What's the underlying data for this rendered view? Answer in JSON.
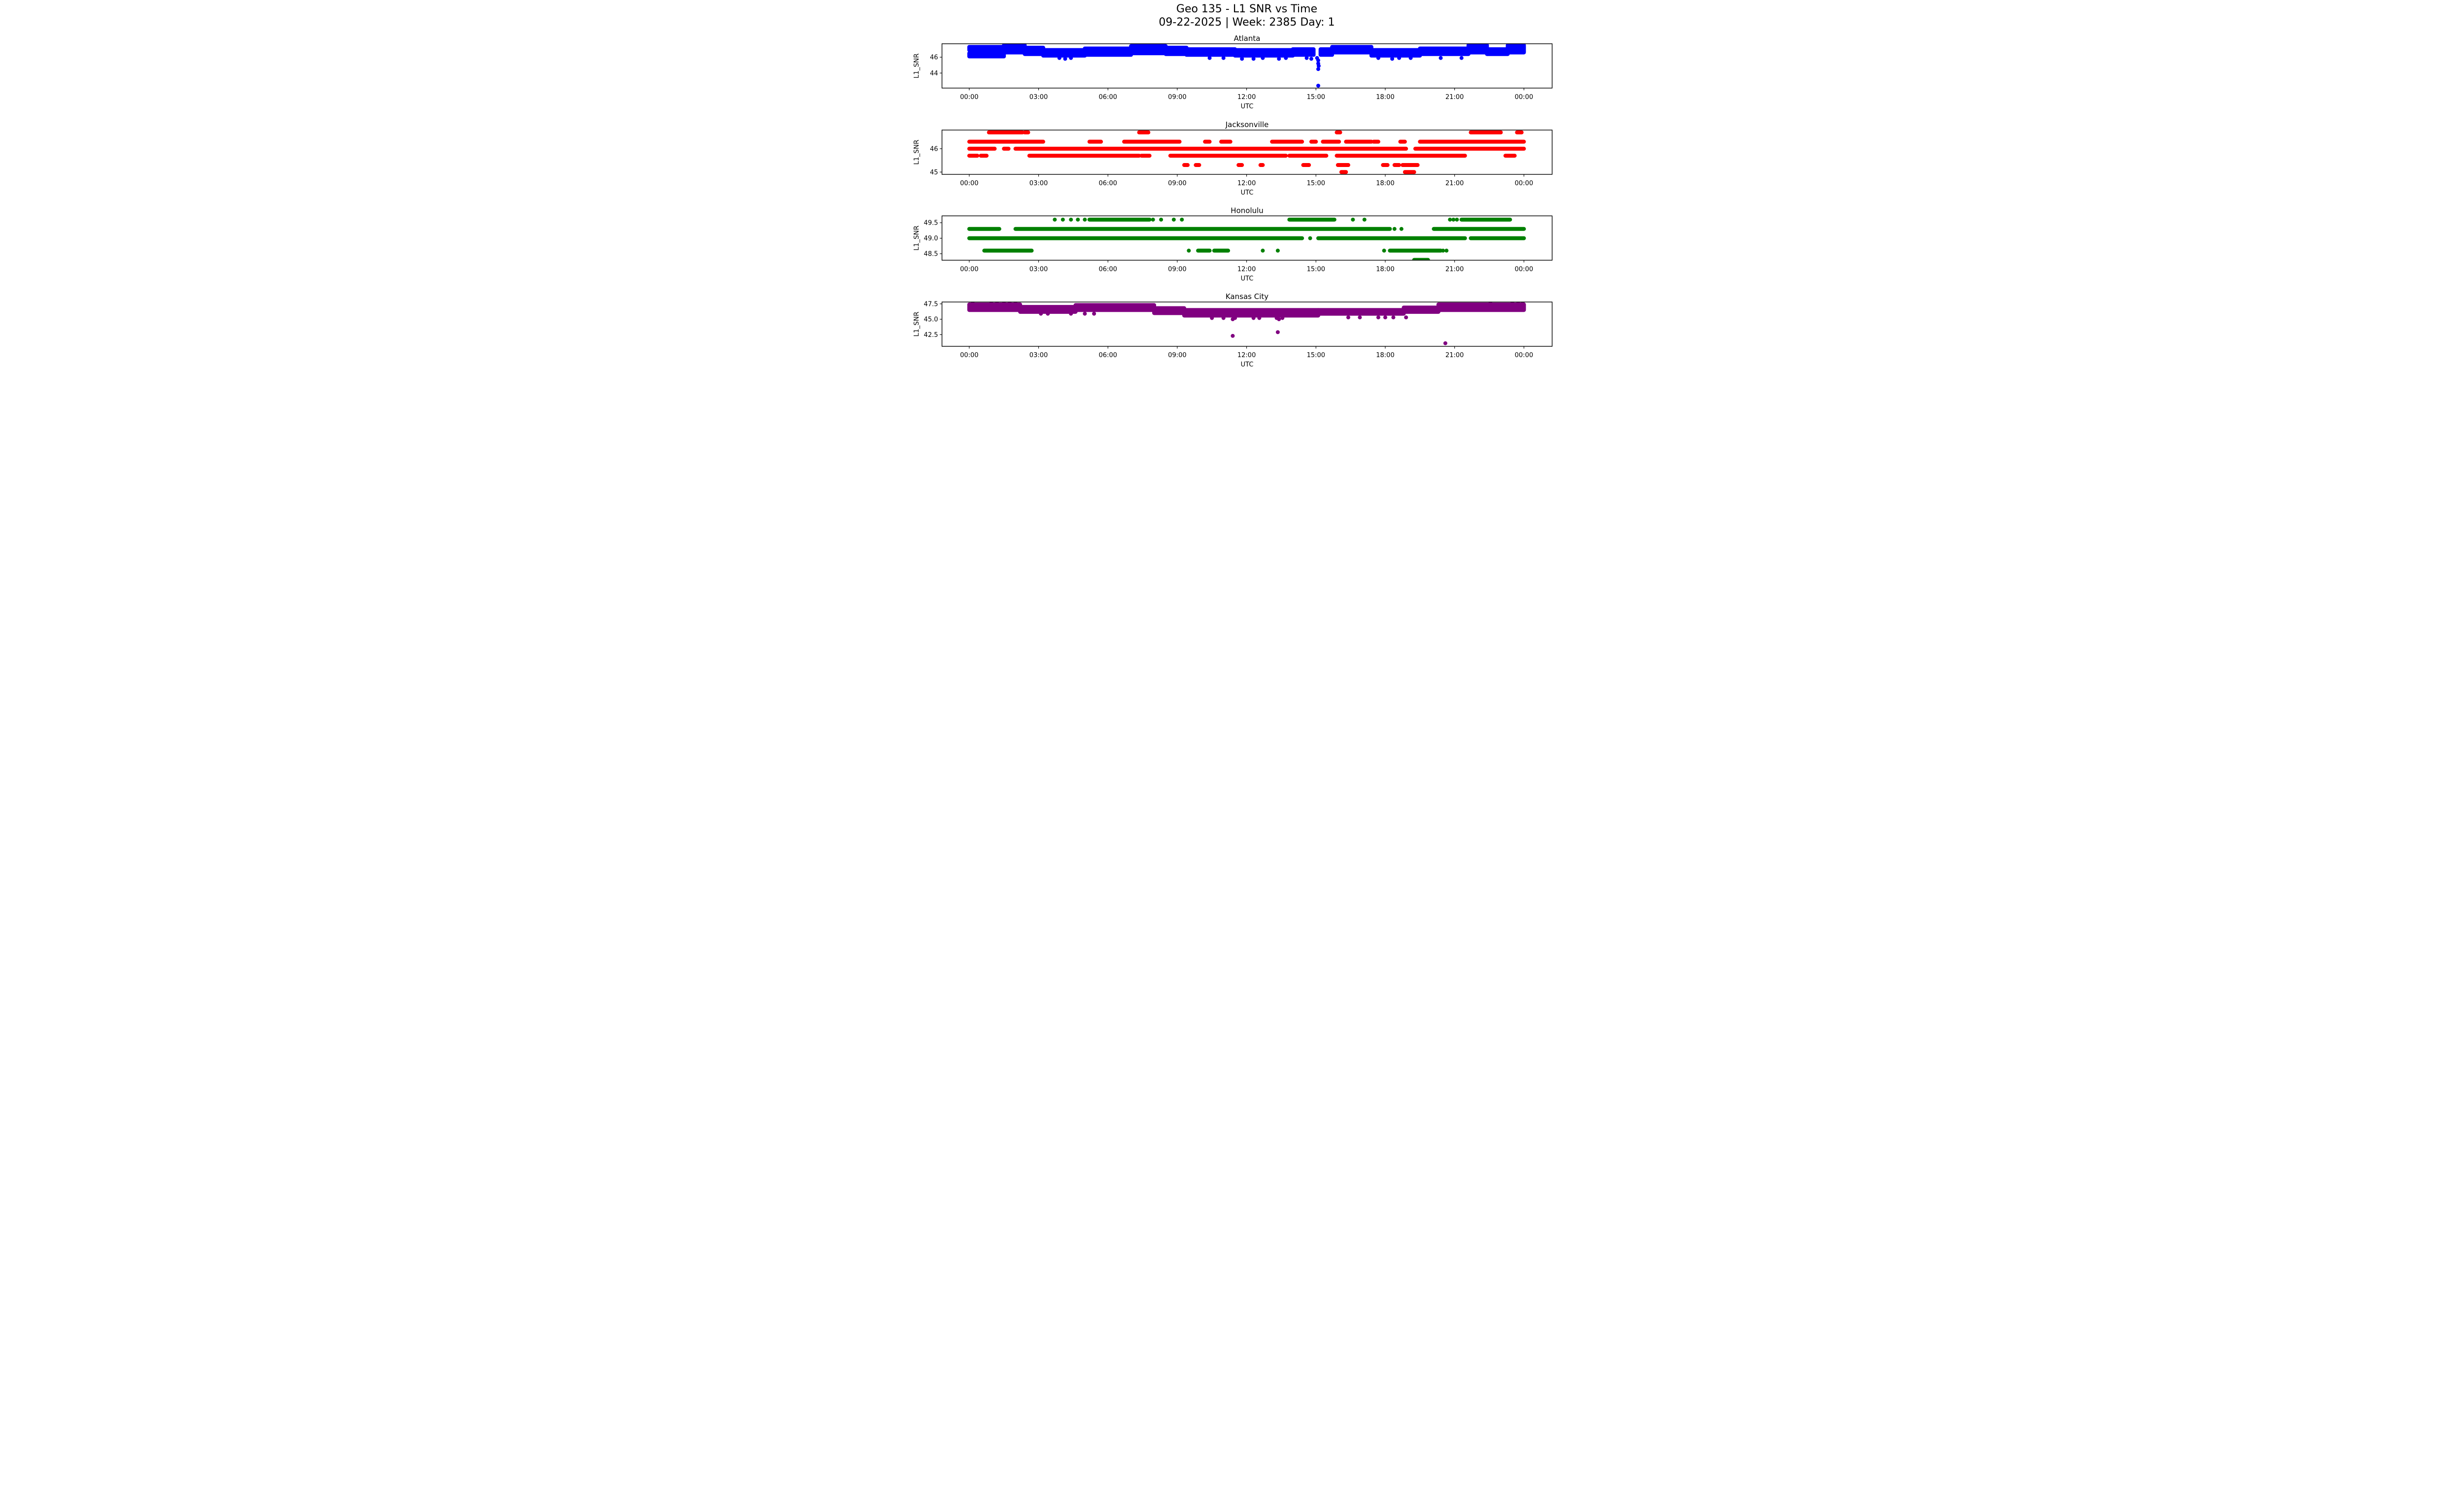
{
  "figure": {
    "title": "Geo 135 - L1 SNR vs Time",
    "subtitle": "09-22-2025 | Week: 2385 Day: 1",
    "background_color": "#ffffff",
    "text_color": "#000000"
  },
  "chart_data": [
    {
      "type": "scatter",
      "title": "Atlanta",
      "color": "#0000ff",
      "xlabel": "UTC",
      "ylabel": "L1_SNR",
      "x_tick_labels": [
        "00:00",
        "03:00",
        "06:00",
        "09:00",
        "12:00",
        "15:00",
        "18:00",
        "21:00",
        "00:00"
      ],
      "x_tick_hours": [
        0,
        3,
        6,
        9,
        12,
        15,
        18,
        21,
        24
      ],
      "xlim_hours": [
        -1.18,
        25.22
      ],
      "ylim": [
        42.1,
        47.7
      ],
      "y_ticks": [
        46,
        44
      ],
      "y_tick_labels": [
        "46",
        "44"
      ],
      "snr_quantization_db": 0.1,
      "bands": [
        [
          0,
          1.5,
          46.9,
          47.3
        ],
        [
          0,
          1.5,
          46.1,
          46.5
        ],
        [
          1.5,
          2.4,
          46.6,
          47.5
        ],
        [
          2.4,
          3.2,
          46.4,
          47.2
        ],
        [
          3.2,
          5.0,
          46.2,
          46.9
        ],
        [
          5.0,
          7.0,
          46.3,
          47.1
        ],
        [
          7.0,
          8.5,
          46.5,
          47.4
        ],
        [
          8.5,
          9.4,
          46.4,
          47.2
        ],
        [
          9.4,
          11.5,
          46.3,
          47.0
        ],
        [
          11.5,
          14.0,
          46.2,
          46.9
        ],
        [
          14.0,
          14.9,
          46.3,
          47.0
        ],
        [
          15.2,
          15.7,
          46.3,
          47.0
        ],
        [
          15.7,
          17.4,
          46.6,
          47.3
        ],
        [
          17.4,
          19.5,
          46.2,
          46.9
        ],
        [
          19.5,
          21.6,
          46.4,
          47.1
        ],
        [
          21.6,
          22.4,
          46.6,
          47.5
        ],
        [
          22.4,
          23.3,
          46.4,
          47.0
        ],
        [
          23.3,
          24.0,
          46.6,
          47.5
        ]
      ],
      "runs": [],
      "points": [
        [
          3.9,
          45.9
        ],
        [
          4.15,
          45.8
        ],
        [
          4.4,
          45.9
        ],
        [
          10.4,
          45.9
        ],
        [
          11.0,
          45.9
        ],
        [
          11.8,
          45.8
        ],
        [
          12.3,
          45.8
        ],
        [
          12.7,
          45.9
        ],
        [
          13.4,
          45.8
        ],
        [
          13.7,
          45.9
        ],
        [
          14.6,
          45.9
        ],
        [
          14.8,
          45.8
        ],
        [
          15.05,
          45.9
        ],
        [
          15.1,
          45.6
        ],
        [
          15.1,
          45.2
        ],
        [
          15.12,
          44.9
        ],
        [
          15.1,
          44.5
        ],
        [
          15.1,
          42.4
        ],
        [
          17.7,
          45.9
        ],
        [
          18.3,
          45.8
        ],
        [
          18.6,
          45.9
        ],
        [
          19.1,
          45.9
        ],
        [
          20.4,
          45.9
        ],
        [
          21.3,
          45.9
        ]
      ]
    },
    {
      "type": "scatter",
      "title": "Jacksonville",
      "color": "#ff0000",
      "xlabel": "UTC",
      "ylabel": "L1_SNR",
      "x_tick_labels": [
        "00:00",
        "03:00",
        "06:00",
        "09:00",
        "12:00",
        "15:00",
        "18:00",
        "21:00",
        "00:00"
      ],
      "x_tick_hours": [
        0,
        3,
        6,
        9,
        12,
        15,
        18,
        21,
        24
      ],
      "xlim_hours": [
        -1.18,
        25.22
      ],
      "ylim": [
        44.9,
        46.8
      ],
      "y_ticks": [
        46,
        45
      ],
      "y_tick_labels": [
        "46",
        "45"
      ],
      "snr_quantization_db": 0.33,
      "bands": [],
      "runs": [
        {
          "y": 46.7,
          "segments": [
            [
              0.85,
              2.3
            ],
            [
              2.4,
              2.55
            ],
            [
              7.35,
              7.75
            ],
            [
              15.9,
              16.05
            ],
            [
              21.7,
              23.0
            ],
            [
              23.7,
              23.9
            ]
          ]
        },
        {
          "y": 46.3,
          "segments": [
            [
              0,
              3.2
            ],
            [
              5.2,
              5.7
            ],
            [
              6.7,
              9.1
            ],
            [
              10.2,
              10.4
            ],
            [
              10.9,
              11.3
            ],
            [
              13.1,
              14.4
            ],
            [
              14.8,
              15.0
            ],
            [
              15.3,
              16.0
            ],
            [
              16.3,
              17.4
            ],
            [
              17.5,
              17.7
            ],
            [
              18.65,
              18.85
            ],
            [
              19.5,
              24
            ]
          ]
        },
        {
          "y": 46.0,
          "segments": [
            [
              0,
              1.1
            ],
            [
              1.5,
              1.7
            ],
            [
              2.0,
              18.9
            ],
            [
              19.3,
              24
            ]
          ]
        },
        {
          "y": 45.7,
          "segments": [
            [
              0,
              0.35
            ],
            [
              0.5,
              0.75
            ],
            [
              2.6,
              7.35
            ],
            [
              7.45,
              7.8
            ],
            [
              8.7,
              13.7
            ],
            [
              13.85,
              15.45
            ],
            [
              15.9,
              21.45
            ],
            [
              23.2,
              23.6
            ]
          ]
        },
        {
          "y": 45.3,
          "segments": [
            [
              9.3,
              9.45
            ],
            [
              9.8,
              9.95
            ],
            [
              11.65,
              11.8
            ],
            [
              12.6,
              12.7
            ],
            [
              14.45,
              14.7
            ],
            [
              15.95,
              16.4
            ],
            [
              17.9,
              18.1
            ],
            [
              18.4,
              18.6
            ],
            [
              18.75,
              19.4
            ]
          ]
        },
        {
          "y": 45.0,
          "segments": [
            [
              16.1,
              16.3
            ],
            [
              18.85,
              19.25
            ]
          ]
        }
      ],
      "points": []
    },
    {
      "type": "scatter",
      "title": "Honolulu",
      "color": "#008000",
      "xlabel": "UTC",
      "ylabel": "L1_SNR",
      "x_tick_labels": [
        "00:00",
        "03:00",
        "06:00",
        "09:00",
        "12:00",
        "15:00",
        "18:00",
        "21:00",
        "00:00"
      ],
      "x_tick_hours": [
        0,
        3,
        6,
        9,
        12,
        15,
        18,
        21,
        24
      ],
      "xlim_hours": [
        -1.18,
        25.22
      ],
      "ylim": [
        48.29,
        49.72
      ],
      "y_ticks": [
        49.5,
        49.0,
        48.5
      ],
      "y_tick_labels": [
        "49.5",
        "49.0",
        "48.5"
      ],
      "snr_quantization_db": 0.33,
      "bands": [],
      "runs": [
        {
          "y": 49.6,
          "segments": [
            [
              5.2,
              7.8
            ],
            [
              13.85,
              15.8
            ],
            [
              21.3,
              23.4
            ]
          ]
        },
        {
          "y": 49.3,
          "segments": [
            [
              0,
              1.3
            ],
            [
              2.0,
              18.2
            ],
            [
              20.1,
              24
            ]
          ]
        },
        {
          "y": 49.0,
          "segments": [
            [
              0,
              14.4
            ],
            [
              15.1,
              21.45
            ],
            [
              21.7,
              24
            ]
          ]
        },
        {
          "y": 48.6,
          "segments": [
            [
              0.65,
              2.7
            ],
            [
              9.9,
              10.4
            ],
            [
              10.6,
              11.2
            ],
            [
              18.2,
              20.4
            ]
          ]
        },
        {
          "y": 48.3,
          "segments": [
            [
              19.25,
              19.85
            ]
          ]
        }
      ],
      "points": [
        [
          3.7,
          49.6
        ],
        [
          4.05,
          49.6
        ],
        [
          4.4,
          49.6
        ],
        [
          4.7,
          49.6
        ],
        [
          5.0,
          49.6
        ],
        [
          7.95,
          49.6
        ],
        [
          8.3,
          49.6
        ],
        [
          8.85,
          49.6
        ],
        [
          9.2,
          49.6
        ],
        [
          16.6,
          49.6
        ],
        [
          17.1,
          49.6
        ],
        [
          20.8,
          49.6
        ],
        [
          20.95,
          49.6
        ],
        [
          21.1,
          49.6
        ],
        [
          18.4,
          49.3
        ],
        [
          18.7,
          49.3
        ],
        [
          14.75,
          49.0
        ],
        [
          9.5,
          48.6
        ],
        [
          12.7,
          48.6
        ],
        [
          13.35,
          48.6
        ],
        [
          17.95,
          48.6
        ],
        [
          20.5,
          48.6
        ],
        [
          20.65,
          48.6
        ]
      ]
    },
    {
      "type": "scatter",
      "title": "Kansas City",
      "color": "#800080",
      "xlabel": "UTC",
      "ylabel": "L1_SNR",
      "x_tick_labels": [
        "00:00",
        "03:00",
        "06:00",
        "09:00",
        "12:00",
        "15:00",
        "18:00",
        "21:00",
        "00:00"
      ],
      "x_tick_hours": [
        0,
        3,
        6,
        9,
        12,
        15,
        18,
        21,
        24
      ],
      "xlim_hours": [
        -1.18,
        25.22
      ],
      "ylim": [
        40.6,
        47.8
      ],
      "y_ticks": [
        47.5,
        45.0,
        42.5
      ],
      "y_tick_labels": [
        "47.5",
        "45.0",
        "42.5"
      ],
      "snr_quantization_db": 0.1,
      "bands": [
        [
          0,
          2.2,
          46.5,
          47.4
        ],
        [
          2.2,
          4.6,
          46.2,
          47.0
        ],
        [
          4.6,
          8.0,
          46.5,
          47.3
        ],
        [
          8.0,
          9.3,
          46.0,
          46.8
        ],
        [
          9.3,
          15.1,
          45.6,
          46.5
        ],
        [
          15.1,
          18.8,
          45.9,
          46.5
        ],
        [
          18.8,
          20.3,
          46.2,
          46.9
        ],
        [
          20.3,
          24,
          46.5,
          47.4
        ]
      ],
      "runs": [],
      "points": [
        [
          0.15,
          47.6
        ],
        [
          0.95,
          47.6
        ],
        [
          1.2,
          47.6
        ],
        [
          1.5,
          47.6
        ],
        [
          1.75,
          47.6
        ],
        [
          2.0,
          47.6
        ],
        [
          22.55,
          47.6
        ],
        [
          23.5,
          47.6
        ],
        [
          23.75,
          47.6
        ],
        [
          23.95,
          47.6
        ],
        [
          3.1,
          45.9
        ],
        [
          3.4,
          45.9
        ],
        [
          4.4,
          45.9
        ],
        [
          5.0,
          45.9
        ],
        [
          5.4,
          45.9
        ],
        [
          10.5,
          45.2
        ],
        [
          11.0,
          45.2
        ],
        [
          11.5,
          45.2
        ],
        [
          12.3,
          45.2
        ],
        [
          12.55,
          45.2
        ],
        [
          13.3,
          45.2
        ],
        [
          13.55,
          45.2
        ],
        [
          16.4,
          45.3
        ],
        [
          16.9,
          45.3
        ],
        [
          17.7,
          45.3
        ],
        [
          18.0,
          45.3
        ],
        [
          18.35,
          45.3
        ],
        [
          18.9,
          45.3
        ],
        [
          11.4,
          45.0
        ],
        [
          13.4,
          45.0
        ],
        [
          11.4,
          42.3
        ],
        [
          13.35,
          42.9
        ],
        [
          20.6,
          41.1
        ]
      ]
    }
  ]
}
